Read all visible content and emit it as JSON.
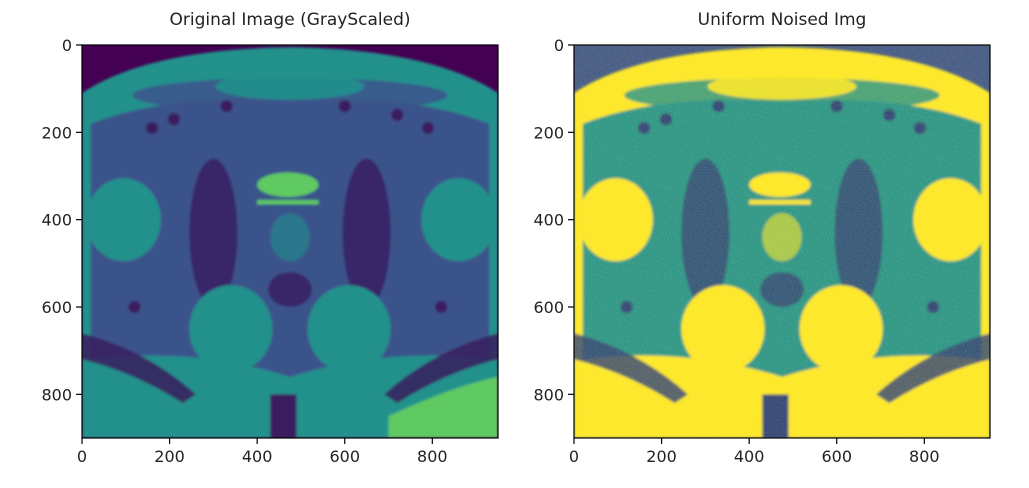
{
  "panels": [
    {
      "title": "Original Image (GrayScaled)",
      "x_ticks": [
        "0",
        "200",
        "400",
        "600",
        "800"
      ],
      "y_ticks": [
        "0",
        "200",
        "400",
        "600",
        "800"
      ],
      "xlim": [
        0,
        950
      ],
      "ylim": [
        0,
        900
      ],
      "colormap": "viridis",
      "noise": false
    },
    {
      "title": "Uniform Noised Img",
      "x_ticks": [
        "0",
        "200",
        "400",
        "600",
        "800"
      ],
      "y_ticks": [
        "0",
        "200",
        "400",
        "600",
        "800"
      ],
      "xlim": [
        0,
        950
      ],
      "ylim": [
        0,
        900
      ],
      "colormap": "viridis",
      "noise": true
    }
  ],
  "colors": {
    "viridis_dark": "#440154",
    "viridis_blue": "#3b528b",
    "viridis_teal": "#21918c",
    "viridis_green": "#5ec962",
    "viridis_yellow": "#fde725"
  }
}
